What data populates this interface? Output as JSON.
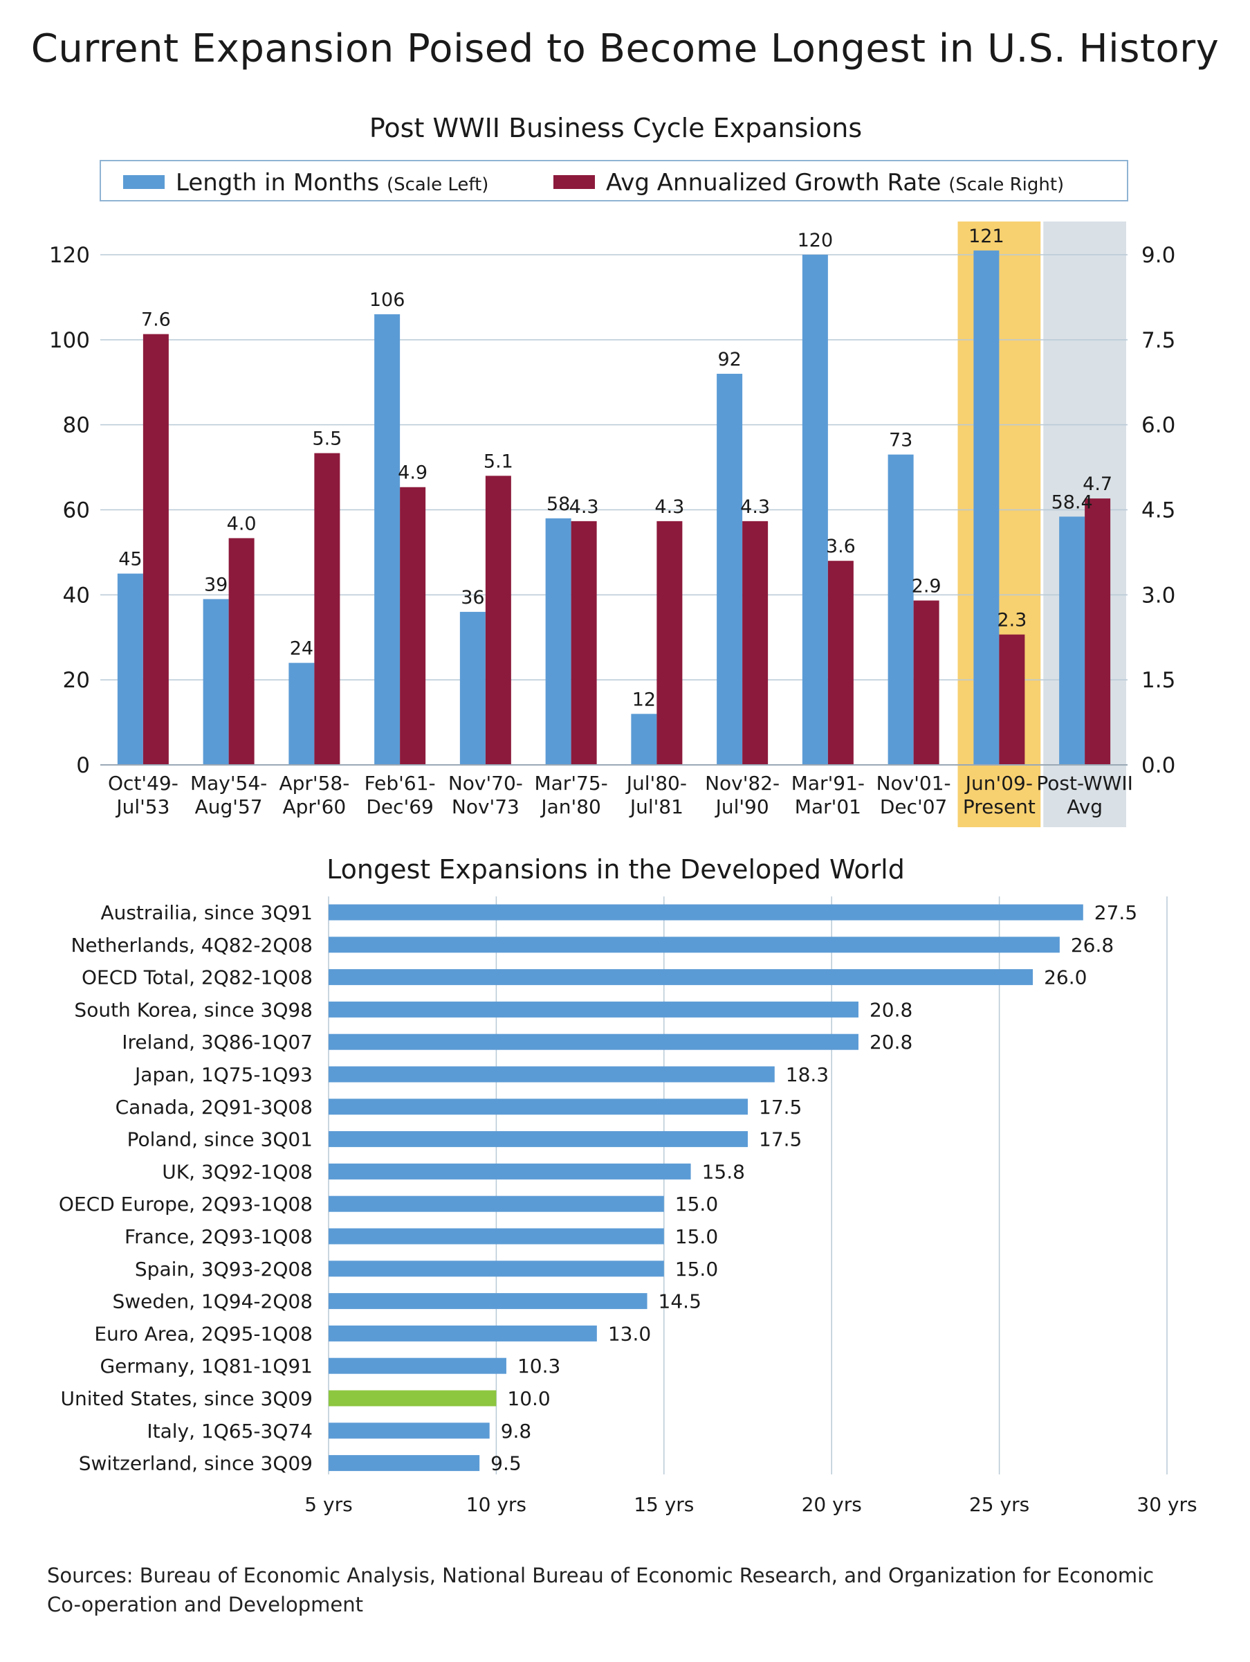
{
  "title": "Current Expansion Poised to Become Longest in U.S. History",
  "sources": "Sources: Bureau of Economic Analysis, National Bureau of Economic Research, and Organization for Economic Co-operation and Development",
  "colors": {
    "blue": "#5b9bd5",
    "maroon": "#8c1a3c",
    "green": "#8dc63f",
    "highlight_current": "#f7d070",
    "highlight_avg": "#d9e0e6",
    "grid": "#b8c9d6",
    "legend_border": "#8fb3d3"
  },
  "chart_data": [
    {
      "type": "bar",
      "title": "Post WWII Business Cycle Expansions",
      "categories": [
        [
          "Oct'49-",
          "Jul'53"
        ],
        [
          "May'54-",
          "Aug'57"
        ],
        [
          "Apr'58-",
          "Apr'60"
        ],
        [
          "Feb'61-",
          "Dec'69"
        ],
        [
          "Nov'70-",
          "Nov'73"
        ],
        [
          "Mar'75-",
          "Jan'80"
        ],
        [
          "Jul'80-",
          "Jul'81"
        ],
        [
          "Nov'82-",
          "Jul'90"
        ],
        [
          "Mar'91-",
          "Mar'01"
        ],
        [
          "Nov'01-",
          "Dec'07"
        ],
        [
          "Jun'09-",
          "Present"
        ],
        [
          "Post-WWII",
          "Avg"
        ]
      ],
      "legend_position": "top",
      "series": [
        {
          "name": "Length in Months",
          "name_note": "(Scale Left)",
          "axis": "left",
          "color": "#5b9bd5",
          "values": [
            45,
            39,
            24,
            106,
            36,
            58,
            12,
            92,
            120,
            73,
            121,
            58.4
          ],
          "labels": [
            "45",
            "39",
            "24",
            "106",
            "36",
            "58",
            "12",
            "92",
            "120",
            "73",
            "121",
            "58.4"
          ]
        },
        {
          "name": "Avg Annualized Growth Rate",
          "name_note": "(Scale Right)",
          "axis": "right",
          "color": "#8c1a3c",
          "values": [
            7.6,
            4.0,
            5.5,
            4.9,
            5.1,
            4.3,
            4.3,
            4.3,
            3.6,
            2.9,
            2.3,
            4.7
          ],
          "labels": [
            "7.6",
            "4.0",
            "5.5",
            "4.9",
            "5.1",
            "4.3",
            "4.3",
            "4.3",
            "3.6",
            "2.9",
            "2.3",
            "4.7"
          ]
        }
      ],
      "y_left": {
        "min": 0,
        "max": 120,
        "ticks": [
          "0",
          "20",
          "40",
          "60",
          "80",
          "100",
          "120"
        ]
      },
      "y_right": {
        "min": 0,
        "max": 9,
        "ticks": [
          "0.0",
          "1.5",
          "3.0",
          "4.5",
          "6.0",
          "7.5",
          "9.0"
        ]
      },
      "grid": true,
      "highlight": [
        {
          "category_index": 10,
          "color": "#f7d070"
        },
        {
          "category_index": 11,
          "color": "#d9e0e6"
        }
      ]
    },
    {
      "type": "bar",
      "orientation": "horizontal",
      "title": "Longest Expansions in the Developed World",
      "categories": [
        "Austrailia, since 3Q91",
        "Netherlands, 4Q82-2Q08",
        "OECD Total, 2Q82-1Q08",
        "South Korea, since 3Q98",
        "Ireland, 3Q86-1Q07",
        "Japan, 1Q75-1Q93",
        "Canada, 2Q91-3Q08",
        "Poland, since 3Q01",
        "UK, 3Q92-1Q08",
        "OECD Europe, 2Q93-1Q08",
        "France, 2Q93-1Q08",
        "Spain, 3Q93-2Q08",
        "Sweden, 1Q94-2Q08",
        "Euro Area, 2Q95-1Q08",
        "Germany, 1Q81-1Q91",
        "United States, since 3Q09",
        "Italy, 1Q65-3Q74",
        "Switzerland, since 3Q09"
      ],
      "values": [
        27.5,
        26.8,
        26.0,
        20.8,
        20.8,
        18.3,
        17.5,
        17.5,
        15.8,
        15.0,
        15.0,
        15.0,
        14.5,
        13.0,
        10.3,
        10.0,
        9.8,
        9.5
      ],
      "labels": [
        "27.5",
        "26.8",
        "26.0",
        "20.8",
        "20.8",
        "18.3",
        "17.5",
        "17.5",
        "15.8",
        "15.0",
        "15.0",
        "15.0",
        "14.5",
        "13.0",
        "10.3",
        "10.0",
        "9.8",
        "9.5"
      ],
      "highlight_index": 15,
      "bar_color": "#5b9bd5",
      "highlight_color": "#8dc63f",
      "xlim": [
        5,
        30
      ],
      "xticks": [
        5,
        10,
        15,
        20,
        25,
        30
      ],
      "xtick_labels": [
        "5 yrs",
        "10 yrs",
        "15 yrs",
        "20 yrs",
        "25 yrs",
        "30 yrs"
      ],
      "grid": true
    }
  ]
}
